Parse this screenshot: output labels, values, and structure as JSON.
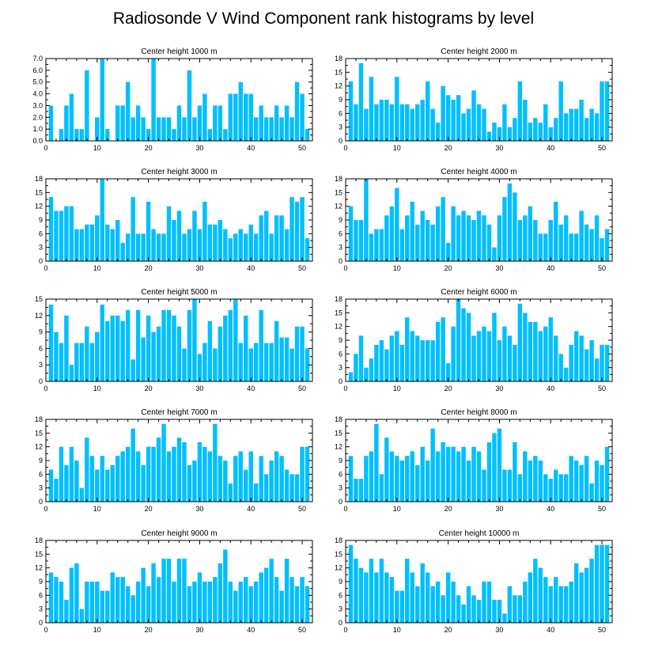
{
  "figure": {
    "title": "Radiosonde V Wind Component rank histograms by level"
  },
  "colors": {
    "bar": "#00bfff",
    "frame": "#000000",
    "background": "#ffffff"
  },
  "chart_data": [
    {
      "type": "bar",
      "title": "Center height 1000 m",
      "x": [
        1,
        2,
        3,
        4,
        5,
        6,
        7,
        8,
        9,
        10,
        11,
        12,
        13,
        14,
        15,
        16,
        17,
        18,
        19,
        20,
        21,
        22,
        23,
        24,
        25,
        26,
        27,
        28,
        29,
        30,
        31,
        32,
        33,
        34,
        35,
        36,
        37,
        38,
        39,
        40,
        41,
        42,
        43,
        44,
        45,
        46,
        47,
        48,
        49,
        50,
        51
      ],
      "values": [
        3,
        0,
        1,
        3,
        4,
        1,
        1,
        6,
        0,
        2,
        7,
        1,
        0,
        3,
        3,
        5,
        2,
        3,
        2,
        1,
        7,
        2,
        2,
        2,
        1,
        3,
        2,
        6,
        2,
        3,
        4,
        1,
        3,
        3,
        1,
        4,
        4,
        5,
        4,
        4,
        2,
        3,
        2,
        2,
        3,
        2,
        3,
        2,
        5,
        4,
        1
      ],
      "xlim": [
        0,
        52
      ],
      "ylim": [
        0,
        7
      ],
      "xticks": [
        0,
        10,
        20,
        30,
        40,
        50
      ],
      "yticks": [
        0,
        1,
        2,
        3,
        4,
        5,
        6,
        7
      ],
      "yticklabels": [
        "0.0",
        "1.0",
        "2.0",
        "3.0",
        "4.0",
        "5.0",
        "6.0",
        "7.0"
      ],
      "xlabel": "",
      "ylabel": "",
      "grid": false
    },
    {
      "type": "bar",
      "title": "Center height 2000 m",
      "x": [
        1,
        2,
        3,
        4,
        5,
        6,
        7,
        8,
        9,
        10,
        11,
        12,
        13,
        14,
        15,
        16,
        17,
        18,
        19,
        20,
        21,
        22,
        23,
        24,
        25,
        26,
        27,
        28,
        29,
        30,
        31,
        32,
        33,
        34,
        35,
        36,
        37,
        38,
        39,
        40,
        41,
        42,
        43,
        44,
        45,
        46,
        47,
        48,
        49,
        50,
        51
      ],
      "values": [
        13,
        8,
        17,
        7,
        14,
        8,
        9,
        9,
        8,
        14,
        8,
        8,
        7,
        8,
        9,
        13,
        7,
        4,
        12,
        10,
        9,
        10,
        6,
        7,
        11,
        8,
        7,
        2,
        4,
        3,
        8,
        3,
        5,
        13,
        9,
        4,
        5,
        4,
        8,
        3,
        5,
        13,
        6,
        7,
        7,
        9,
        5,
        7,
        6,
        13,
        13
      ],
      "xlim": [
        0,
        52
      ],
      "ylim": [
        0,
        18
      ],
      "xticks": [
        0,
        10,
        20,
        30,
        40,
        50
      ],
      "yticks": [
        0,
        3,
        6,
        9,
        12,
        15,
        18
      ],
      "yticklabels": [
        "0",
        "3",
        "6",
        "9",
        "12",
        "15",
        "18"
      ],
      "xlabel": "",
      "ylabel": "",
      "grid": false
    },
    {
      "type": "bar",
      "title": "Center height 3000 m",
      "x": [
        1,
        2,
        3,
        4,
        5,
        6,
        7,
        8,
        9,
        10,
        11,
        12,
        13,
        14,
        15,
        16,
        17,
        18,
        19,
        20,
        21,
        22,
        23,
        24,
        25,
        26,
        27,
        28,
        29,
        30,
        31,
        32,
        33,
        34,
        35,
        36,
        37,
        38,
        39,
        40,
        41,
        42,
        43,
        44,
        45,
        46,
        47,
        48,
        49,
        50,
        51
      ],
      "values": [
        14,
        11,
        11,
        12,
        12,
        7,
        7,
        8,
        8,
        10,
        18,
        8,
        7,
        9,
        4,
        6,
        14,
        6,
        6,
        13,
        7,
        6,
        6,
        12,
        9,
        11,
        6,
        7,
        11,
        7,
        13,
        8,
        8,
        9,
        7,
        5,
        6,
        7,
        6,
        8,
        6,
        10,
        11,
        6,
        10,
        10,
        7,
        14,
        13,
        14,
        5
      ],
      "xlim": [
        0,
        52
      ],
      "ylim": [
        0,
        18
      ],
      "xticks": [
        0,
        10,
        20,
        30,
        40,
        50
      ],
      "yticks": [
        0,
        3,
        6,
        9,
        12,
        15,
        18
      ],
      "yticklabels": [
        "0",
        "3",
        "6",
        "9",
        "12",
        "15",
        "18"
      ],
      "xlabel": "",
      "ylabel": "",
      "grid": false
    },
    {
      "type": "bar",
      "title": "Center height 4000 m",
      "x": [
        1,
        2,
        3,
        4,
        5,
        6,
        7,
        8,
        9,
        10,
        11,
        12,
        13,
        14,
        15,
        16,
        17,
        18,
        19,
        20,
        21,
        22,
        23,
        24,
        25,
        26,
        27,
        28,
        29,
        30,
        31,
        32,
        33,
        34,
        35,
        36,
        37,
        38,
        39,
        40,
        41,
        42,
        43,
        44,
        45,
        46,
        47,
        48,
        49,
        50,
        51
      ],
      "values": [
        12,
        9,
        9,
        18,
        6,
        7,
        7,
        10,
        12,
        16,
        7,
        10,
        13,
        8,
        11,
        9,
        8,
        12,
        14,
        4,
        12,
        10,
        11,
        10,
        9,
        11,
        10,
        8,
        3,
        10,
        14,
        17,
        15,
        9,
        10,
        12,
        9,
        6,
        6,
        9,
        13,
        8,
        10,
        6,
        6,
        11,
        8,
        7,
        10,
        5,
        7
      ],
      "xlim": [
        0,
        52
      ],
      "ylim": [
        0,
        18
      ],
      "xticks": [
        0,
        10,
        20,
        30,
        40,
        50
      ],
      "yticks": [
        0,
        3,
        6,
        9,
        12,
        15,
        18
      ],
      "yticklabels": [
        "0",
        "3",
        "6",
        "9",
        "12",
        "15",
        "18"
      ],
      "xlabel": "",
      "ylabel": "",
      "grid": false
    },
    {
      "type": "bar",
      "title": "Center height 5000 m",
      "x": [
        1,
        2,
        3,
        4,
        5,
        6,
        7,
        8,
        9,
        10,
        11,
        12,
        13,
        14,
        15,
        16,
        17,
        18,
        19,
        20,
        21,
        22,
        23,
        24,
        25,
        26,
        27,
        28,
        29,
        30,
        31,
        32,
        33,
        34,
        35,
        36,
        37,
        38,
        39,
        40,
        41,
        42,
        43,
        44,
        45,
        46,
        47,
        48,
        49,
        50,
        51
      ],
      "values": [
        14,
        9,
        7,
        12,
        3,
        7,
        7,
        10,
        7,
        9,
        14,
        11,
        12,
        12,
        11,
        13,
        4,
        13,
        8,
        12,
        9,
        10,
        13,
        13,
        12,
        10,
        6,
        13,
        15,
        5,
        7,
        11,
        6,
        10,
        12,
        13,
        15,
        7,
        12,
        6,
        7,
        13,
        7,
        7,
        11,
        8,
        8,
        6,
        10,
        10,
        6
      ],
      "xlim": [
        0,
        52
      ],
      "ylim": [
        0,
        15
      ],
      "xticks": [
        0,
        10,
        20,
        30,
        40,
        50
      ],
      "yticks": [
        0,
        3,
        6,
        9,
        12,
        15
      ],
      "yticklabels": [
        "0",
        "3",
        "6",
        "9",
        "12",
        "15"
      ],
      "xlabel": "",
      "ylabel": "",
      "grid": false
    },
    {
      "type": "bar",
      "title": "Center height 6000 m",
      "x": [
        1,
        2,
        3,
        4,
        5,
        6,
        7,
        8,
        9,
        10,
        11,
        12,
        13,
        14,
        15,
        16,
        17,
        18,
        19,
        20,
        21,
        22,
        23,
        24,
        25,
        26,
        27,
        28,
        29,
        30,
        31,
        32,
        33,
        34,
        35,
        36,
        37,
        38,
        39,
        40,
        41,
        42,
        43,
        44,
        45,
        46,
        47,
        48,
        49,
        50,
        51
      ],
      "values": [
        2,
        6,
        10,
        3,
        5,
        8,
        9,
        7,
        10,
        11,
        8,
        14,
        11,
        10,
        9,
        9,
        9,
        13,
        14,
        4,
        12,
        18,
        16,
        15,
        10,
        11,
        12,
        11,
        15,
        9,
        12,
        10,
        8,
        17,
        15,
        13,
        13,
        11,
        12,
        14,
        10,
        6,
        3,
        8,
        11,
        10,
        7,
        9,
        5,
        8,
        8
      ],
      "xlim": [
        0,
        52
      ],
      "ylim": [
        0,
        18
      ],
      "xticks": [
        0,
        10,
        20,
        30,
        40,
        50
      ],
      "yticks": [
        0,
        3,
        6,
        9,
        12,
        15,
        18
      ],
      "yticklabels": [
        "0",
        "3",
        "6",
        "9",
        "12",
        "15",
        "18"
      ],
      "xlabel": "",
      "ylabel": "",
      "grid": false
    },
    {
      "type": "bar",
      "title": "Center height 7000 m",
      "x": [
        1,
        2,
        3,
        4,
        5,
        6,
        7,
        8,
        9,
        10,
        11,
        12,
        13,
        14,
        15,
        16,
        17,
        18,
        19,
        20,
        21,
        22,
        23,
        24,
        25,
        26,
        27,
        28,
        29,
        30,
        31,
        32,
        33,
        34,
        35,
        36,
        37,
        38,
        39,
        40,
        41,
        42,
        43,
        44,
        45,
        46,
        47,
        48,
        49,
        50,
        51
      ],
      "values": [
        7,
        5,
        12,
        8,
        12,
        9,
        3,
        14,
        10,
        7,
        10,
        7,
        8,
        10,
        11,
        12,
        16,
        11,
        8,
        12,
        12,
        14,
        17,
        11,
        12,
        14,
        13,
        8,
        9,
        13,
        12,
        11,
        17,
        10,
        9,
        4,
        10,
        11,
        7,
        11,
        4,
        10,
        6,
        9,
        11,
        10,
        7,
        6,
        6,
        12,
        12
      ],
      "xlim": [
        0,
        52
      ],
      "ylim": [
        0,
        18
      ],
      "xticks": [
        0,
        10,
        20,
        30,
        40,
        50
      ],
      "yticks": [
        0,
        3,
        6,
        9,
        12,
        15,
        18
      ],
      "yticklabels": [
        "0",
        "3",
        "6",
        "9",
        "12",
        "15",
        "18"
      ],
      "xlabel": "",
      "ylabel": "",
      "grid": false
    },
    {
      "type": "bar",
      "title": "Center height 8000 m",
      "x": [
        1,
        2,
        3,
        4,
        5,
        6,
        7,
        8,
        9,
        10,
        11,
        12,
        13,
        14,
        15,
        16,
        17,
        18,
        19,
        20,
        21,
        22,
        23,
        24,
        25,
        26,
        27,
        28,
        29,
        30,
        31,
        32,
        33,
        34,
        35,
        36,
        37,
        38,
        39,
        40,
        41,
        42,
        43,
        44,
        45,
        46,
        47,
        48,
        49,
        50,
        51
      ],
      "values": [
        10,
        5,
        5,
        10,
        11,
        17,
        6,
        14,
        11,
        10,
        9,
        10,
        11,
        8,
        12,
        9,
        16,
        11,
        13,
        12,
        12,
        11,
        12,
        9,
        12,
        11,
        7,
        13,
        15,
        16,
        7,
        7,
        13,
        6,
        11,
        9,
        10,
        9,
        6,
        5,
        7,
        6,
        6,
        10,
        9,
        8,
        10,
        4,
        9,
        8,
        12
      ],
      "xlim": [
        0,
        52
      ],
      "ylim": [
        0,
        18
      ],
      "xticks": [
        0,
        10,
        20,
        30,
        40,
        50
      ],
      "yticks": [
        0,
        3,
        6,
        9,
        12,
        15,
        18
      ],
      "yticklabels": [
        "0",
        "3",
        "6",
        "9",
        "12",
        "15",
        "18"
      ],
      "xlabel": "",
      "ylabel": "",
      "grid": false
    },
    {
      "type": "bar",
      "title": "Center height 9000 m",
      "x": [
        1,
        2,
        3,
        4,
        5,
        6,
        7,
        8,
        9,
        10,
        11,
        12,
        13,
        14,
        15,
        16,
        17,
        18,
        19,
        20,
        21,
        22,
        23,
        24,
        25,
        26,
        27,
        28,
        29,
        30,
        31,
        32,
        33,
        34,
        35,
        36,
        37,
        38,
        39,
        40,
        41,
        42,
        43,
        44,
        45,
        46,
        47,
        48,
        49,
        50,
        51
      ],
      "values": [
        11,
        10,
        9,
        5,
        12,
        13,
        3,
        9,
        9,
        9,
        7,
        7,
        11,
        10,
        10,
        8,
        6,
        9,
        12,
        8,
        13,
        10,
        14,
        14,
        9,
        14,
        14,
        8,
        9,
        11,
        9,
        9,
        10,
        13,
        16,
        9,
        7,
        9,
        10,
        8,
        9,
        11,
        12,
        14,
        10,
        7,
        14,
        10,
        8,
        10,
        8
      ],
      "xlim": [
        0,
        52
      ],
      "ylim": [
        0,
        18
      ],
      "xticks": [
        0,
        10,
        20,
        30,
        40,
        50
      ],
      "yticks": [
        0,
        3,
        6,
        9,
        12,
        15,
        18
      ],
      "yticklabels": [
        "0",
        "3",
        "6",
        "9",
        "12",
        "15",
        "18"
      ],
      "xlabel": "",
      "ylabel": "",
      "grid": false
    },
    {
      "type": "bar",
      "title": "Center height 10000 m",
      "x": [
        1,
        2,
        3,
        4,
        5,
        6,
        7,
        8,
        9,
        10,
        11,
        12,
        13,
        14,
        15,
        16,
        17,
        18,
        19,
        20,
        21,
        22,
        23,
        24,
        25,
        26,
        27,
        28,
        29,
        30,
        31,
        32,
        33,
        34,
        35,
        36,
        37,
        38,
        39,
        40,
        41,
        42,
        43,
        44,
        45,
        46,
        47,
        48,
        49,
        50,
        51
      ],
      "values": [
        17,
        14,
        12,
        11,
        14,
        11,
        14,
        11,
        10,
        7,
        7,
        14,
        11,
        8,
        13,
        11,
        8,
        9,
        6,
        11,
        9,
        6,
        4,
        8,
        6,
        5,
        9,
        9,
        5,
        5,
        2,
        8,
        6,
        6,
        9,
        11,
        14,
        12,
        10,
        8,
        10,
        8,
        8,
        9,
        13,
        11,
        12,
        14,
        17,
        17,
        17
      ],
      "xlim": [
        0,
        52
      ],
      "ylim": [
        0,
        18
      ],
      "xticks": [
        0,
        10,
        20,
        30,
        40,
        50
      ],
      "yticks": [
        0,
        3,
        6,
        9,
        12,
        15,
        18
      ],
      "yticklabels": [
        "0",
        "3",
        "6",
        "9",
        "12",
        "15",
        "18"
      ],
      "xlabel": "",
      "ylabel": "",
      "grid": false
    }
  ]
}
